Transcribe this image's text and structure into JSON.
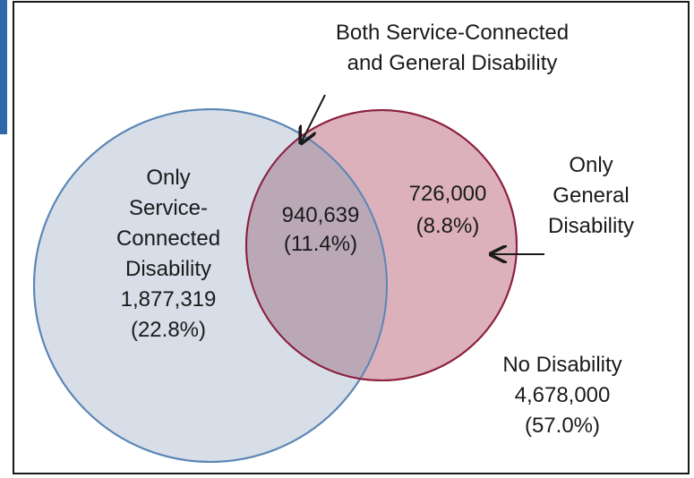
{
  "diagram": {
    "colors": {
      "frame": "#1a1a1a",
      "left_circle_fill": "#d7dee8",
      "left_circle_stroke": "#5a86b4",
      "right_circle_fill": "#dcb1bb",
      "right_circle_stroke": "#8b1f3e",
      "overlap_fill": "#bba8b7",
      "accent_strip": "#2f68a8"
    },
    "labels": {
      "both": {
        "line1": "Both Service-Connected",
        "line2": "and General Disability"
      },
      "only_service": {
        "line1": "Only",
        "line2": "Service-",
        "line3": "Connected",
        "line4": "Disability",
        "count": "1,877,319",
        "pct": "(22.8%)"
      },
      "overlap": {
        "count": "940,639",
        "pct": "(11.4%)"
      },
      "only_general_values": {
        "count": "726,000",
        "pct": "(8.8%)"
      },
      "only_general_title": {
        "line1": "Only",
        "line2": "General",
        "line3": "Disability"
      },
      "none": {
        "line1": "No Disability",
        "count": "4,678,000",
        "pct": "(57.0%)"
      }
    }
  }
}
